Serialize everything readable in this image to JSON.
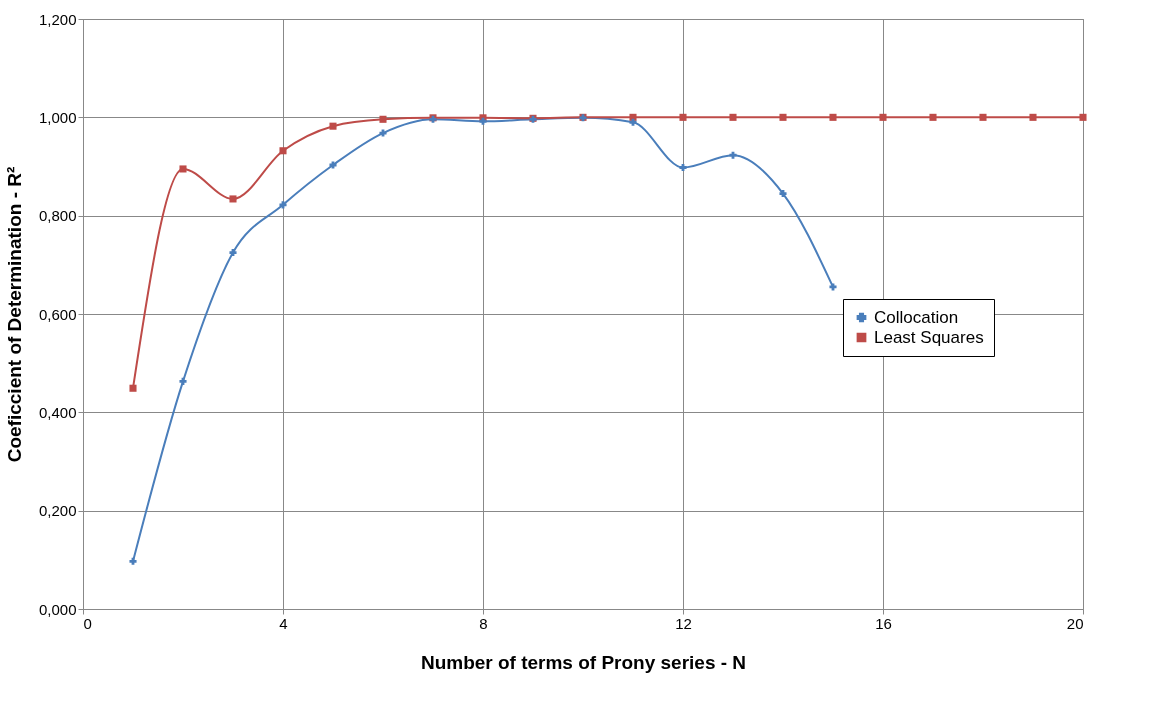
{
  "chart_data": {
    "type": "line",
    "xlabel": "Number of terms of Prony series - N",
    "ylabel": "Coeficcient of Determination - R²",
    "xlim": [
      0,
      20
    ],
    "xticks": [
      0,
      4,
      8,
      12,
      16,
      20
    ],
    "ylim": [
      0,
      1.2
    ],
    "yticks": [
      {
        "value": 0,
        "label": "0,000"
      },
      {
        "value": 0.2,
        "label": "0,200"
      },
      {
        "value": 0.4,
        "label": "0,400"
      },
      {
        "value": 0.6,
        "label": "0,600"
      },
      {
        "value": 0.8,
        "label": "0,800"
      },
      {
        "value": 1.0,
        "label": "1,000"
      },
      {
        "value": 1.2,
        "label": "1,200"
      }
    ],
    "grid": true,
    "legend": "right",
    "series": [
      {
        "name": "Collocation",
        "color": "#4a7ebb",
        "marker": "cross",
        "x": [
          1,
          2,
          3,
          4,
          5,
          6,
          7,
          8,
          9,
          10,
          11,
          12,
          13,
          14,
          15
        ],
        "values": [
          0.097,
          0.463,
          0.725,
          0.822,
          0.903,
          0.968,
          0.996,
          0.992,
          0.996,
          0.999,
          0.99,
          0.898,
          0.923,
          0.845,
          0.655
        ]
      },
      {
        "name": "Least Squares",
        "color": "#be4b48",
        "marker": "square",
        "x": [
          1,
          2,
          3,
          4,
          5,
          6,
          7,
          8,
          9,
          10,
          11,
          12,
          13,
          14,
          15,
          16,
          17,
          18,
          19,
          20
        ],
        "values": [
          0.449,
          0.895,
          0.834,
          0.932,
          0.982,
          0.996,
          0.999,
          0.999,
          0.998,
          1.0,
          1.0,
          1.0,
          1.0,
          1.0,
          1.0,
          1.0,
          1.0,
          1.0,
          1.0,
          1.0
        ]
      }
    ]
  }
}
